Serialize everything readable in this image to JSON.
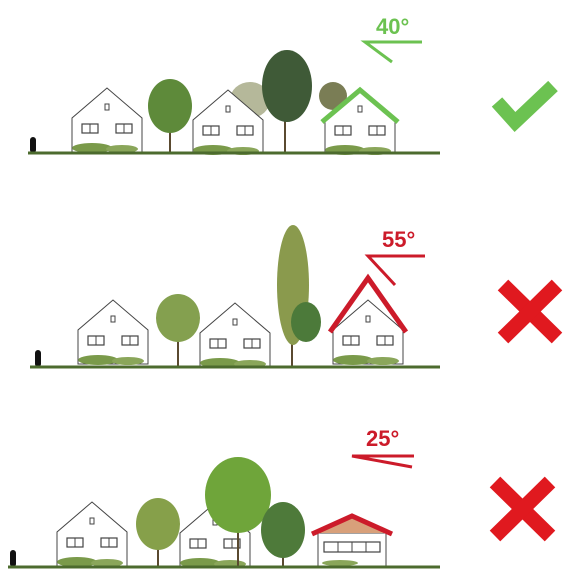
{
  "rows": [
    {
      "angle": "40°"
    },
    {
      "angle": "55°"
    },
    {
      "angle": "25°"
    }
  ]
}
